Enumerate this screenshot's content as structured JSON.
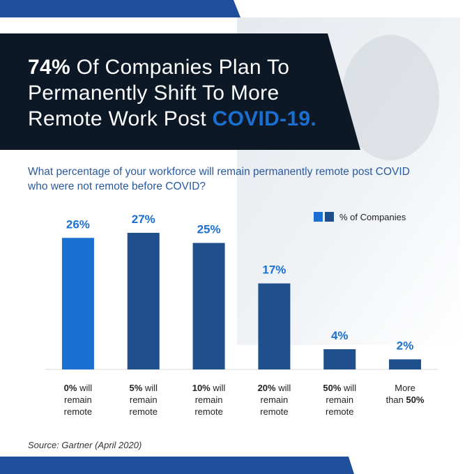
{
  "chart_data": {
    "type": "bar",
    "title": {
      "lead": "74%",
      "middle": "Of Companies Plan To Permanently Shift To More Remote Work Post",
      "highlight": "COVID-19."
    },
    "subtitle": "What percentage of your workforce will remain permanently remote post COVID who were not remote before COVID?",
    "categories": [
      "0% will remain remote",
      "5% will remain remote",
      "10% will remain remote",
      "20% will remain remote",
      "50% will remain remote",
      "More than 50%"
    ],
    "series": [
      {
        "name": "% of Companies",
        "colors": [
          "#1b6fd0",
          "#1f4f8d",
          "#1f4f8d",
          "#1f4f8d",
          "#1f4f8d",
          "#1f4f8d"
        ],
        "values": [
          26,
          27,
          25,
          17,
          4,
          2
        ],
        "value_labels": [
          "26%",
          "27%",
          "25%",
          "17%",
          "4%",
          "2%"
        ]
      }
    ],
    "legend": "top-right",
    "source": "Source: Gartner (April 2020)"
  }
}
